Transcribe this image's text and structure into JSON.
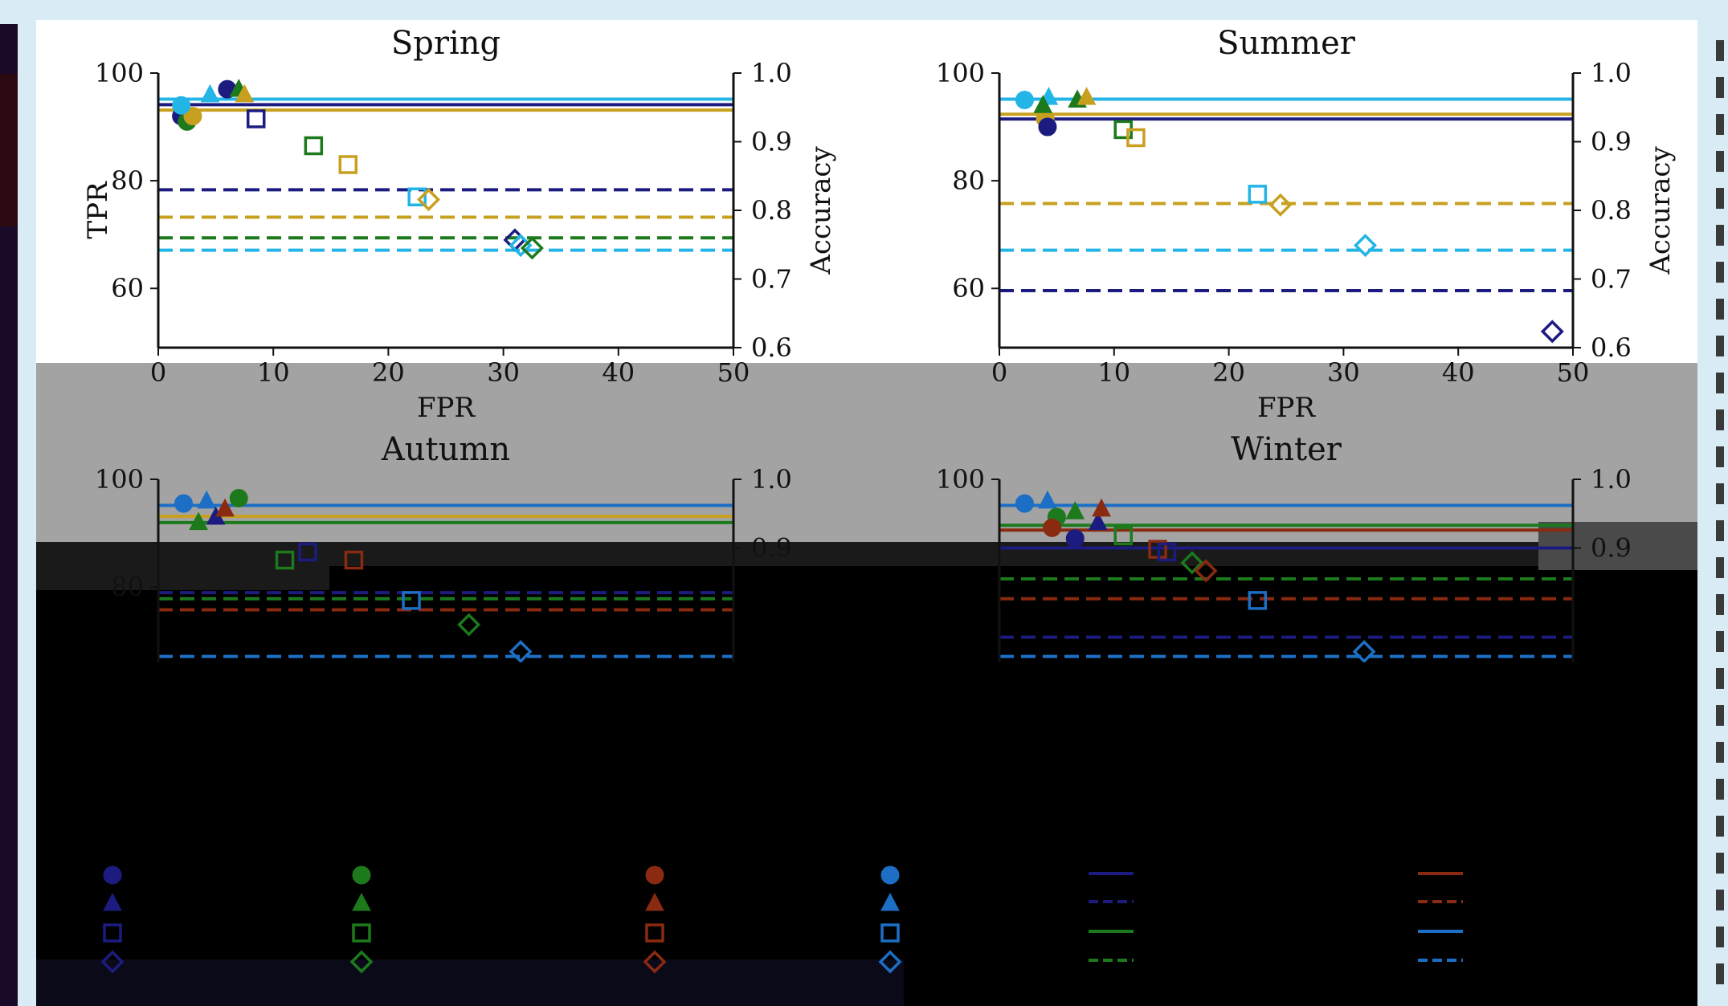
{
  "colors": {
    "navy": "#1c1c80",
    "blue": "#1c6fc4",
    "sky": "#22b5e6",
    "green": "#1c7a1c",
    "mustard": "#c8a020",
    "red": "#8a2a10"
  },
  "chart_data": [
    {
      "type": "scatter",
      "title": "Spring",
      "xlabel": "FPR",
      "ylabel": "TPR",
      "y2label": "Accuracy",
      "xlim": [
        0,
        50
      ],
      "ylim": [
        49,
        100
      ],
      "y2lim": [
        0.6,
        1.0
      ],
      "xticks": [
        "0",
        "10",
        "20",
        "30",
        "40",
        "50"
      ],
      "yticks": [
        "60",
        "80",
        "100"
      ],
      "y2ticks": [
        "0.6",
        "0.7",
        "0.8",
        "0.9",
        "1.0"
      ],
      "points": [
        {
          "x": 2,
          "y": 92,
          "marker": "circle",
          "color": "navy",
          "filled": true
        },
        {
          "x": 2.5,
          "y": 91,
          "marker": "circle",
          "color": "green",
          "filled": true
        },
        {
          "x": 3,
          "y": 92,
          "marker": "circle",
          "color": "mustard",
          "filled": true
        },
        {
          "x": 2,
          "y": 94,
          "marker": "circle",
          "color": "sky",
          "filled": true
        },
        {
          "x": 6,
          "y": 97,
          "marker": "circle",
          "color": "navy",
          "filled": true
        },
        {
          "x": 4.5,
          "y": 96,
          "marker": "triangle",
          "color": "sky",
          "filled": true
        },
        {
          "x": 7,
          "y": 97,
          "marker": "triangle",
          "color": "green",
          "filled": true
        },
        {
          "x": 7.5,
          "y": 96,
          "marker": "triangle",
          "color": "mustard",
          "filled": true
        },
        {
          "x": 8.5,
          "y": 91.5,
          "marker": "square",
          "color": "navy",
          "filled": false
        },
        {
          "x": 13.5,
          "y": 86.5,
          "marker": "square",
          "color": "green",
          "filled": false
        },
        {
          "x": 16.5,
          "y": 83,
          "marker": "square",
          "color": "mustard",
          "filled": false
        },
        {
          "x": 22.5,
          "y": 77,
          "marker": "square",
          "color": "sky",
          "filled": false
        },
        {
          "x": 23.5,
          "y": 76.5,
          "marker": "diamond",
          "color": "mustard",
          "filled": false
        },
        {
          "x": 31,
          "y": 69,
          "marker": "diamond",
          "color": "navy",
          "filled": false
        },
        {
          "x": 31.5,
          "y": 68,
          "marker": "diamond",
          "color": "sky",
          "filled": false
        },
        {
          "x": 32.5,
          "y": 67.5,
          "marker": "diamond",
          "color": "green",
          "filled": false
        }
      ],
      "hlines": [
        {
          "acc": 0.962,
          "color": "sky",
          "style": "solid"
        },
        {
          "acc": 0.954,
          "color": "navy",
          "style": "solid"
        },
        {
          "acc": 0.946,
          "color": "mustard",
          "style": "solid"
        },
        {
          "acc": 0.83,
          "color": "navy",
          "style": "dashed"
        },
        {
          "acc": 0.79,
          "color": "mustard",
          "style": "dashed"
        },
        {
          "acc": 0.76,
          "color": "green",
          "style": "dashed"
        },
        {
          "acc": 0.742,
          "color": "sky",
          "style": "dashed"
        }
      ]
    },
    {
      "type": "scatter",
      "title": "Summer",
      "xlabel": "FPR",
      "ylabel": "TPR",
      "y2label": "Accuracy",
      "xlim": [
        0,
        50
      ],
      "ylim": [
        49,
        100
      ],
      "y2lim": [
        0.6,
        1.0
      ],
      "xticks": [
        "0",
        "10",
        "20",
        "30",
        "40",
        "50"
      ],
      "yticks": [
        "60",
        "80",
        "100"
      ],
      "y2ticks": [
        "0.6",
        "0.7",
        "0.8",
        "0.9",
        "1.0"
      ],
      "points": [
        {
          "x": 2.2,
          "y": 95,
          "marker": "circle",
          "color": "sky",
          "filled": true
        },
        {
          "x": 4,
          "y": 91.5,
          "marker": "circle",
          "color": "mustard",
          "filled": true
        },
        {
          "x": 4.2,
          "y": 90,
          "marker": "circle",
          "color": "navy",
          "filled": true
        },
        {
          "x": 4.3,
          "y": 95.5,
          "marker": "triangle",
          "color": "sky",
          "filled": true
        },
        {
          "x": 3.8,
          "y": 94,
          "marker": "triangle",
          "color": "green",
          "filled": true
        },
        {
          "x": 6.8,
          "y": 95,
          "marker": "triangle",
          "color": "green",
          "filled": true
        },
        {
          "x": 7.6,
          "y": 95.5,
          "marker": "triangle",
          "color": "mustard",
          "filled": true
        },
        {
          "x": 10.8,
          "y": 89.5,
          "marker": "square",
          "color": "green",
          "filled": false
        },
        {
          "x": 11.9,
          "y": 88,
          "marker": "square",
          "color": "mustard",
          "filled": false
        },
        {
          "x": 22.5,
          "y": 77.5,
          "marker": "square",
          "color": "sky",
          "filled": false
        },
        {
          "x": 24.5,
          "y": 75.5,
          "marker": "diamond",
          "color": "mustard",
          "filled": false
        },
        {
          "x": 31.9,
          "y": 68,
          "marker": "diamond",
          "color": "sky",
          "filled": false
        },
        {
          "x": 48.2,
          "y": 52,
          "marker": "diamond",
          "color": "navy",
          "filled": false
        }
      ],
      "hlines": [
        {
          "acc": 0.962,
          "color": "sky",
          "style": "solid"
        },
        {
          "acc": 0.94,
          "color": "mustard",
          "style": "solid"
        },
        {
          "acc": 0.933,
          "color": "navy",
          "style": "solid"
        },
        {
          "acc": 0.81,
          "color": "mustard",
          "style": "dashed"
        },
        {
          "acc": 0.742,
          "color": "sky",
          "style": "dashed"
        },
        {
          "acc": 0.683,
          "color": "navy",
          "style": "dashed"
        }
      ]
    },
    {
      "type": "scatter",
      "title": "Autumn",
      "xlabel": "",
      "ylabel": "",
      "y2label": "",
      "xlim": [
        0,
        50
      ],
      "ylim": [
        49,
        100
      ],
      "y2lim": [
        0.6,
        1.0
      ],
      "xticks": [],
      "yticks": [
        "80",
        "100"
      ],
      "y2ticks": [
        "0.9",
        "1.0"
      ],
      "points": [
        {
          "x": 2.2,
          "y": 95.5,
          "marker": "circle",
          "color": "blue",
          "filled": true
        },
        {
          "x": 4.2,
          "y": 96,
          "marker": "triangle",
          "color": "blue",
          "filled": true
        },
        {
          "x": 3.5,
          "y": 92,
          "marker": "triangle",
          "color": "green",
          "filled": true
        },
        {
          "x": 5,
          "y": 93,
          "marker": "triangle",
          "color": "navy",
          "filled": true
        },
        {
          "x": 5.8,
          "y": 94.5,
          "marker": "triangle",
          "color": "red",
          "filled": true
        },
        {
          "x": 7,
          "y": 96.5,
          "marker": "circle",
          "color": "green",
          "filled": true
        },
        {
          "x": 11,
          "y": 85,
          "marker": "square",
          "color": "green",
          "filled": false
        },
        {
          "x": 13,
          "y": 86.5,
          "marker": "square",
          "color": "navy",
          "filled": false
        },
        {
          "x": 17,
          "y": 85,
          "marker": "square",
          "color": "red",
          "filled": false
        },
        {
          "x": 22,
          "y": 77.5,
          "marker": "square",
          "color": "blue",
          "filled": false
        },
        {
          "x": 27,
          "y": 73,
          "marker": "diamond",
          "color": "green",
          "filled": false
        },
        {
          "x": 31.5,
          "y": 68,
          "marker": "diamond",
          "color": "blue",
          "filled": false
        }
      ],
      "hlines": [
        {
          "acc": 0.962,
          "color": "blue",
          "style": "solid"
        },
        {
          "acc": 0.946,
          "color": "mustard",
          "style": "solid"
        },
        {
          "acc": 0.937,
          "color": "green",
          "style": "solid"
        },
        {
          "acc": 0.835,
          "color": "navy",
          "style": "dashed"
        },
        {
          "acc": 0.826,
          "color": "green",
          "style": "dashed"
        },
        {
          "acc": 0.81,
          "color": "red",
          "style": "dashed"
        },
        {
          "acc": 0.742,
          "color": "blue",
          "style": "dashed"
        }
      ]
    },
    {
      "type": "scatter",
      "title": "Winter",
      "xlabel": "",
      "ylabel": "",
      "y2label": "",
      "xlim": [
        0,
        50
      ],
      "ylim": [
        49,
        100
      ],
      "y2lim": [
        0.6,
        1.0
      ],
      "xticks": [],
      "yticks": [
        "100"
      ],
      "y2ticks": [
        "0.9",
        "1.0"
      ],
      "points": [
        {
          "x": 2.2,
          "y": 95.5,
          "marker": "circle",
          "color": "blue",
          "filled": true
        },
        {
          "x": 4.2,
          "y": 96,
          "marker": "triangle",
          "color": "blue",
          "filled": true
        },
        {
          "x": 5,
          "y": 93,
          "marker": "circle",
          "color": "green",
          "filled": true
        },
        {
          "x": 6.6,
          "y": 94,
          "marker": "triangle",
          "color": "green",
          "filled": true
        },
        {
          "x": 4.6,
          "y": 91,
          "marker": "circle",
          "color": "red",
          "filled": true
        },
        {
          "x": 6.6,
          "y": 89,
          "marker": "circle",
          "color": "navy",
          "filled": true
        },
        {
          "x": 8.6,
          "y": 92,
          "marker": "triangle",
          "color": "navy",
          "filled": true
        },
        {
          "x": 8.9,
          "y": 94.5,
          "marker": "triangle",
          "color": "red",
          "filled": true
        },
        {
          "x": 10.8,
          "y": 89.5,
          "marker": "square",
          "color": "green",
          "filled": false
        },
        {
          "x": 13.8,
          "y": 87,
          "marker": "square",
          "color": "red",
          "filled": false
        },
        {
          "x": 14.6,
          "y": 86.5,
          "marker": "square",
          "color": "navy",
          "filled": false
        },
        {
          "x": 16.8,
          "y": 84.5,
          "marker": "diamond",
          "color": "green",
          "filled": false
        },
        {
          "x": 18,
          "y": 83,
          "marker": "diamond",
          "color": "red",
          "filled": false
        },
        {
          "x": 22.5,
          "y": 77.5,
          "marker": "square",
          "color": "blue",
          "filled": false
        },
        {
          "x": 31.8,
          "y": 68,
          "marker": "diamond",
          "color": "blue",
          "filled": false
        },
        {
          "x": 36.2,
          "y": 64,
          "marker": "diamond",
          "color": "navy",
          "filled": false
        }
      ],
      "hlines": [
        {
          "acc": 0.962,
          "color": "blue",
          "style": "solid"
        },
        {
          "acc": 0.933,
          "color": "green",
          "style": "solid"
        },
        {
          "acc": 0.926,
          "color": "red",
          "style": "solid"
        },
        {
          "acc": 0.9,
          "color": "navy",
          "style": "solid"
        },
        {
          "acc": 0.855,
          "color": "green",
          "style": "dashed"
        },
        {
          "acc": 0.826,
          "color": "red",
          "style": "dashed"
        },
        {
          "acc": 0.77,
          "color": "navy",
          "style": "dashed"
        },
        {
          "acc": 0.742,
          "color": "blue",
          "style": "dashed"
        }
      ]
    }
  ],
  "legend": {
    "marker_columns": [
      {
        "color": "navy",
        "markers": [
          "circle",
          "triangle",
          "square",
          "diamond"
        ]
      },
      {
        "color": "green",
        "markers": [
          "circle",
          "triangle",
          "square",
          "diamond"
        ]
      },
      {
        "color": "red",
        "markers": [
          "circle",
          "triangle",
          "square",
          "diamond"
        ]
      },
      {
        "color": "blue",
        "markers": [
          "circle",
          "triangle",
          "square",
          "diamond"
        ]
      }
    ],
    "line_columns": [
      {
        "entries": [
          {
            "color": "navy",
            "style": "solid"
          },
          {
            "color": "navy",
            "style": "dashed"
          },
          {
            "color": "green",
            "style": "solid"
          },
          {
            "color": "green",
            "style": "dashed"
          }
        ]
      },
      {
        "entries": [
          {
            "color": "red",
            "style": "solid"
          },
          {
            "color": "red",
            "style": "dashed"
          },
          {
            "color": "blue",
            "style": "solid"
          },
          {
            "color": "blue",
            "style": "dashed"
          }
        ]
      }
    ]
  }
}
